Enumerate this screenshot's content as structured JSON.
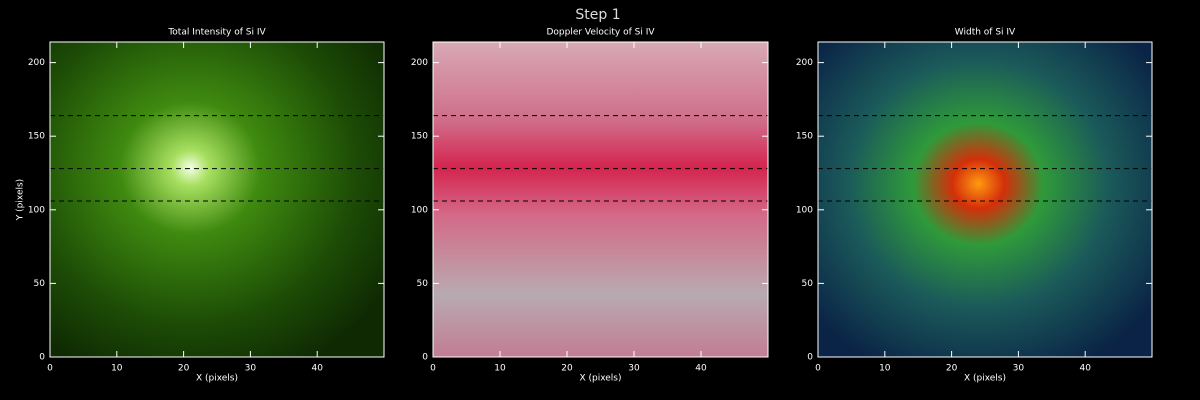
{
  "suptitle": "Step 1",
  "chart_data": [
    {
      "type": "heatmap",
      "title": "Total Intensity of Si IV",
      "xlabel": "X (pixels)",
      "ylabel": "Y (pixels)",
      "xlim": [
        0,
        50
      ],
      "ylim": [
        0,
        214
      ],
      "xticks": [
        0,
        10,
        20,
        30,
        40
      ],
      "yticks": [
        0,
        50,
        100,
        150,
        200
      ],
      "hlines": [
        164,
        128,
        106
      ]
    },
    {
      "type": "heatmap",
      "title": "Doppler Velocity of Si IV",
      "xlabel": "X (pixels)",
      "xlim": [
        0,
        50
      ],
      "ylim": [
        0,
        214
      ],
      "xticks": [
        0,
        10,
        20,
        30,
        40
      ],
      "yticks": [
        0,
        50,
        100,
        150,
        200
      ],
      "hlines": [
        164,
        128,
        106
      ]
    },
    {
      "type": "heatmap",
      "title": "Width of Si IV",
      "xlabel": "X (pixels)",
      "xlim": [
        0,
        50
      ],
      "ylim": [
        0,
        214
      ],
      "xticks": [
        0,
        10,
        20,
        30,
        40
      ],
      "yticks": [
        0,
        50,
        100,
        150,
        200
      ],
      "hlines": [
        164,
        128,
        106
      ]
    }
  ]
}
